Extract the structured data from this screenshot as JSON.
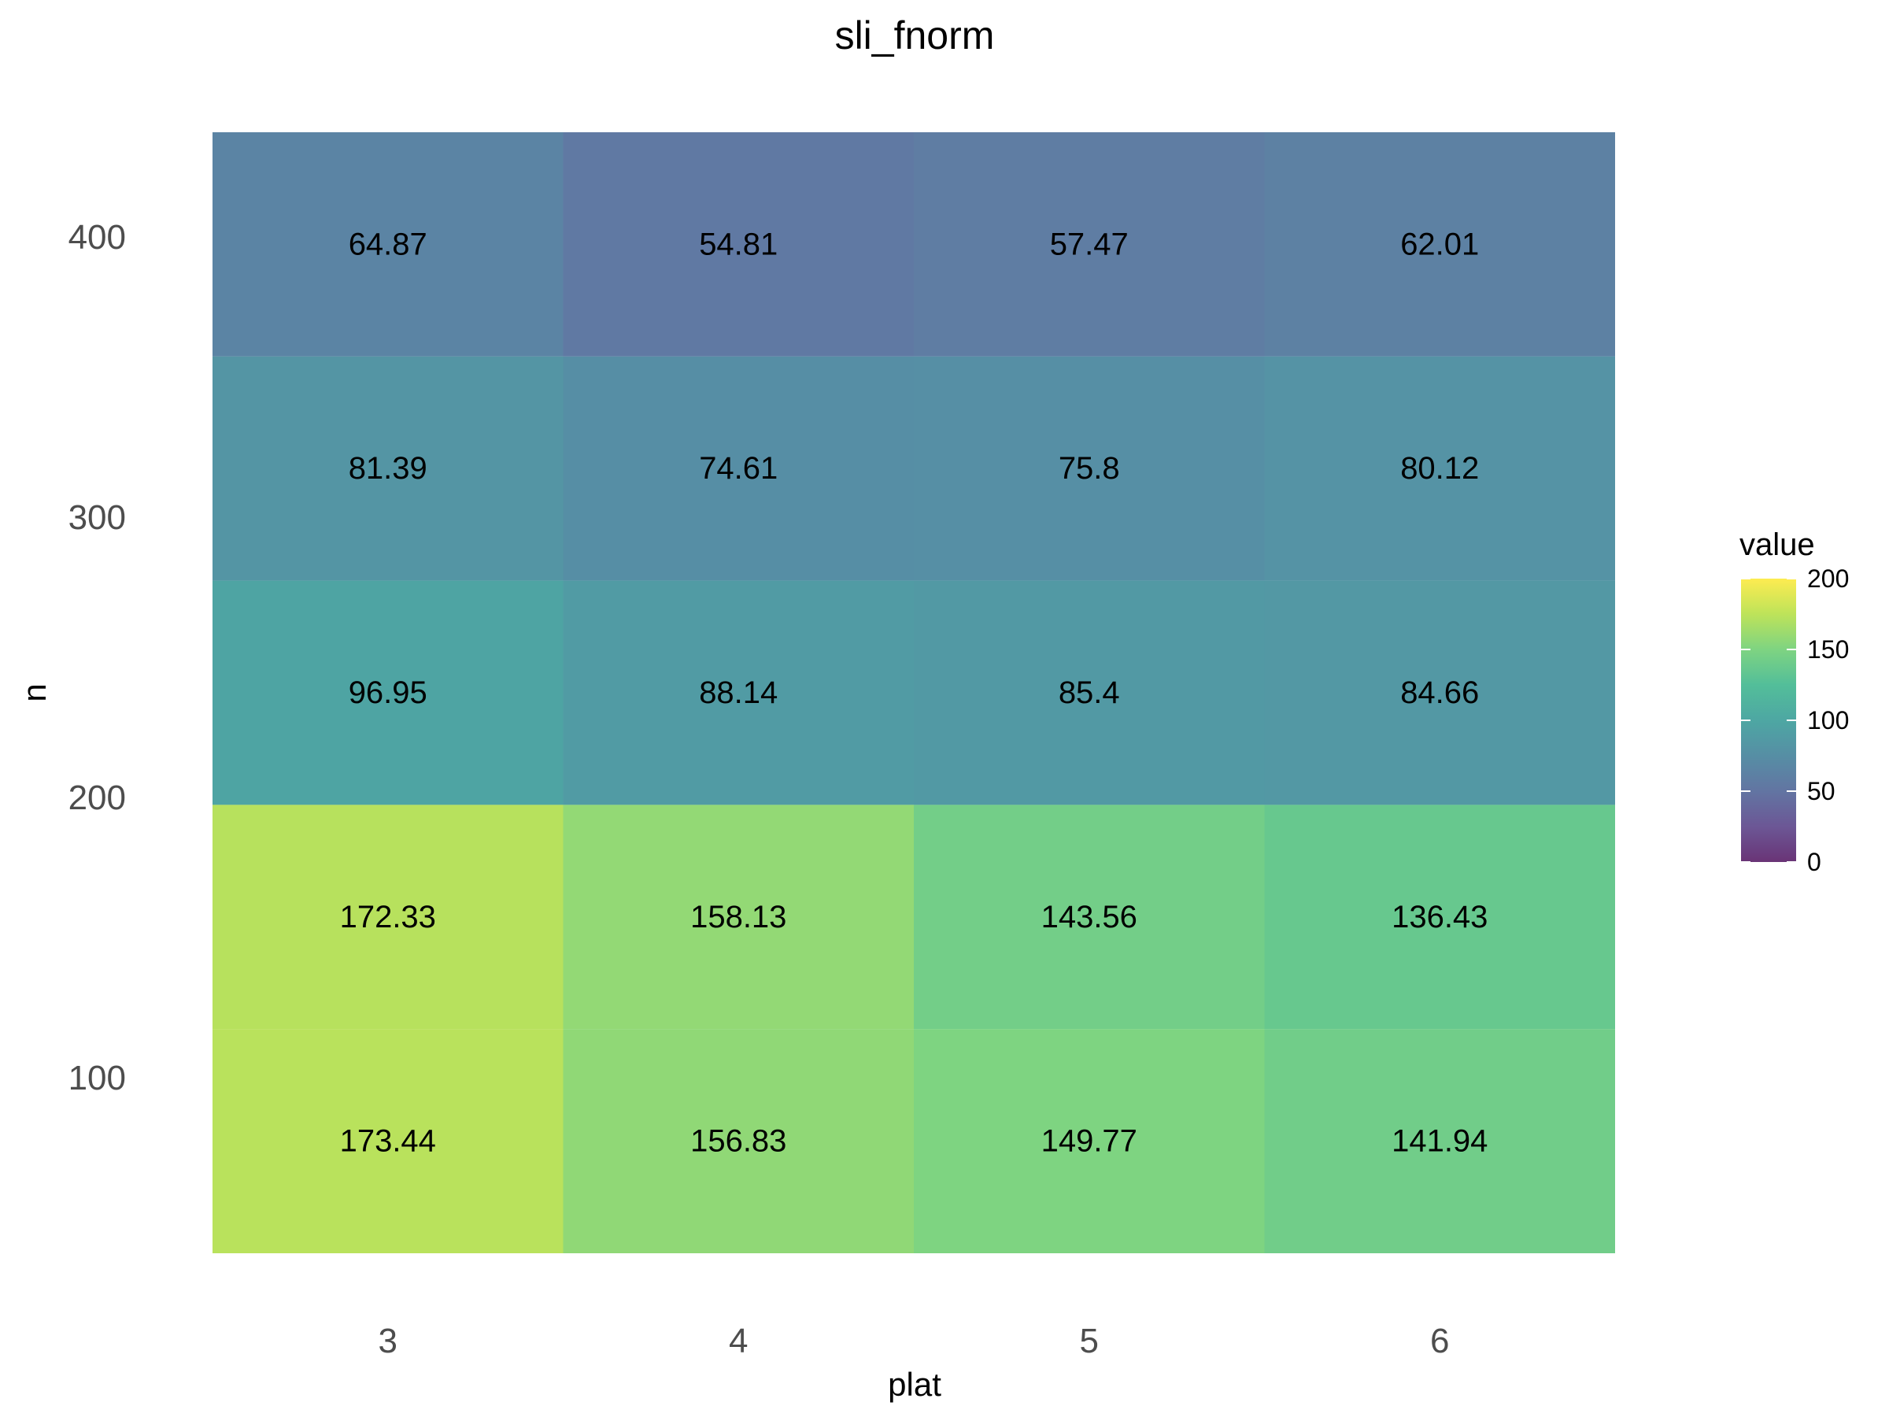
{
  "chart_data": {
    "type": "heatmap",
    "title": "sli_fnorm",
    "xlabel": "plat",
    "ylabel": "n",
    "x_categories": [
      "3",
      "4",
      "5",
      "6"
    ],
    "y_rows": [
      {
        "n": 400,
        "values": [
          64.87,
          54.81,
          57.47,
          62.01
        ]
      },
      {
        "n": 300,
        "values": [
          81.39,
          74.61,
          75.8,
          80.12
        ]
      },
      {
        "n": 225,
        "values": [
          96.95,
          88.14,
          85.4,
          84.66
        ]
      },
      {
        "n": 150,
        "values": [
          172.33,
          158.13,
          143.56,
          136.43
        ]
      },
      {
        "n": 75,
        "values": [
          173.44,
          156.83,
          149.77,
          141.94
        ]
      }
    ],
    "value_labels": [
      [
        "64.87",
        "54.81",
        "57.47",
        "62.01"
      ],
      [
        "81.39",
        "74.61",
        "75.8",
        "80.12"
      ],
      [
        "96.95",
        "88.14",
        "85.4",
        "84.66"
      ],
      [
        "172.33",
        "158.13",
        "143.56",
        "136.43"
      ],
      [
        "173.44",
        "156.83",
        "149.77",
        "141.94"
      ]
    ],
    "y_ticks": [
      {
        "value": 100,
        "label": "100"
      },
      {
        "value": 200,
        "label": "200"
      },
      {
        "value": 300,
        "label": "300"
      },
      {
        "value": 400,
        "label": "400"
      }
    ],
    "y_range": [
      37.5,
      437.5
    ],
    "legend": {
      "title": "value",
      "position": "right",
      "range": [
        0,
        200
      ],
      "ticks": [
        {
          "value": 0,
          "label": "0"
        },
        {
          "value": 50,
          "label": "50"
        },
        {
          "value": 100,
          "label": "100"
        },
        {
          "value": 150,
          "label": "150"
        },
        {
          "value": 200,
          "label": "200"
        }
      ],
      "colormap": "viridis"
    },
    "grid": false
  }
}
